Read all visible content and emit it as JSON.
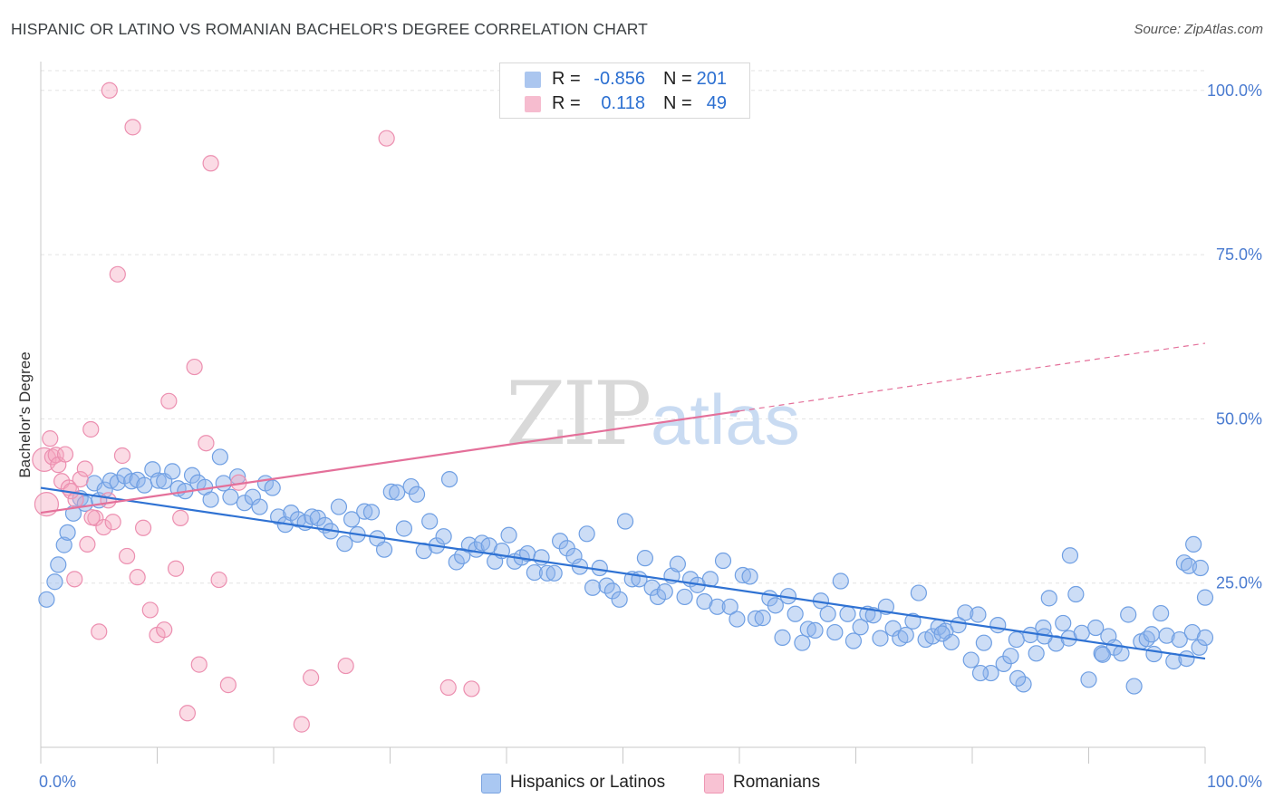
{
  "title": "HISPANIC OR LATINO VS ROMANIAN BACHELOR'S DEGREE CORRELATION CHART",
  "source": "Source: ZipAtlas.com",
  "watermark": {
    "zip": "ZIP",
    "atlas": "atlas"
  },
  "legend": {
    "rows": [
      {
        "r_label": "R =",
        "r_value": "-0.856",
        "n_label": "N =",
        "n_value": "201",
        "color": "#8fb4ea"
      },
      {
        "r_label": "R =",
        "r_value": "0.118",
        "n_label": "N =",
        "n_value": "49",
        "color": "#f4a6bf"
      }
    ]
  },
  "bottom_legend": [
    {
      "label": "Hispanics or Latinos",
      "color": "#aac8f2",
      "border": "#7aa3e0"
    },
    {
      "label": "Romanians",
      "color": "#f8c2d3",
      "border": "#ee96b3"
    }
  ],
  "chart_data": {
    "type": "scatter",
    "title": "HISPANIC OR LATINO VS ROMANIAN BACHELOR'S DEGREE CORRELATION CHART",
    "xlabel": "",
    "ylabel": "Bachelor's Degree",
    "xlim": [
      0,
      100
    ],
    "ylim": [
      0,
      103
    ],
    "x_tick_labels": [
      "0.0%",
      "100.0%"
    ],
    "y_tick_labels": [
      {
        "value": 100,
        "label": "100.0%"
      },
      {
        "value": 75,
        "label": "75.0%"
      },
      {
        "value": 50,
        "label": "50.0%"
      },
      {
        "value": 25,
        "label": "25.0%"
      }
    ],
    "grid": true,
    "legend_position": "top-center",
    "series": [
      {
        "name": "Hispanics or Latinos",
        "color": "#6f9fe3",
        "fill": "rgba(143,180,234,0.45)",
        "trend": {
          "x": [
            0,
            100
          ],
          "y": [
            39.5,
            13.5
          ],
          "dashed_from": null
        },
        "points": [
          [
            0.5,
            22.5
          ],
          [
            1.2,
            25.2
          ],
          [
            1.5,
            27.8
          ],
          [
            2.0,
            30.8
          ],
          [
            2.3,
            32.7
          ],
          [
            2.8,
            35.6
          ],
          [
            3.4,
            37.9
          ],
          [
            3.8,
            37.1
          ],
          [
            4.6,
            40.2
          ],
          [
            5.0,
            37.6
          ],
          [
            5.5,
            39.2
          ],
          [
            6.0,
            40.6
          ],
          [
            6.6,
            40.3
          ],
          [
            7.2,
            41.3
          ],
          [
            7.8,
            40.5
          ],
          [
            8.3,
            40.7
          ],
          [
            8.9,
            39.9
          ],
          [
            9.6,
            42.3
          ],
          [
            10.1,
            40.6
          ],
          [
            10.6,
            40.5
          ],
          [
            11.3,
            42.0
          ],
          [
            11.8,
            39.4
          ],
          [
            12.4,
            39.0
          ],
          [
            13.0,
            41.4
          ],
          [
            13.5,
            40.3
          ],
          [
            14.1,
            39.6
          ],
          [
            14.6,
            37.7
          ],
          [
            15.4,
            44.2
          ],
          [
            15.7,
            40.2
          ],
          [
            16.3,
            38.1
          ],
          [
            16.9,
            41.2
          ],
          [
            17.5,
            37.2
          ],
          [
            18.2,
            38.1
          ],
          [
            18.8,
            36.6
          ],
          [
            19.3,
            40.2
          ],
          [
            19.9,
            39.5
          ],
          [
            20.4,
            35.1
          ],
          [
            21.0,
            33.9
          ],
          [
            21.5,
            35.7
          ],
          [
            22.1,
            34.7
          ],
          [
            22.7,
            34.2
          ],
          [
            23.3,
            35.1
          ],
          [
            23.8,
            34.9
          ],
          [
            24.4,
            33.8
          ],
          [
            24.9,
            32.9
          ],
          [
            25.6,
            36.6
          ],
          [
            26.1,
            31.0
          ],
          [
            26.7,
            34.7
          ],
          [
            27.2,
            32.4
          ],
          [
            27.8,
            35.9
          ],
          [
            28.4,
            35.8
          ],
          [
            28.9,
            31.8
          ],
          [
            29.5,
            30.1
          ],
          [
            30.1,
            38.9
          ],
          [
            30.6,
            38.8
          ],
          [
            31.2,
            33.3
          ],
          [
            31.8,
            39.7
          ],
          [
            32.3,
            38.5
          ],
          [
            32.9,
            29.9
          ],
          [
            33.4,
            34.4
          ],
          [
            34.0,
            30.7
          ],
          [
            34.6,
            32.1
          ],
          [
            35.1,
            40.8
          ],
          [
            35.7,
            28.2
          ],
          [
            36.2,
            29.1
          ],
          [
            36.8,
            30.8
          ],
          [
            37.4,
            30.1
          ],
          [
            37.9,
            31.1
          ],
          [
            38.5,
            30.7
          ],
          [
            39.0,
            28.3
          ],
          [
            39.6,
            29.9
          ],
          [
            40.2,
            32.3
          ],
          [
            40.7,
            28.3
          ],
          [
            41.3,
            28.9
          ],
          [
            41.8,
            29.5
          ],
          [
            42.4,
            26.6
          ],
          [
            43.0,
            28.9
          ],
          [
            43.5,
            26.5
          ],
          [
            44.1,
            26.5
          ],
          [
            44.6,
            31.4
          ],
          [
            45.2,
            30.3
          ],
          [
            45.8,
            29.1
          ],
          [
            46.3,
            27.5
          ],
          [
            46.9,
            32.5
          ],
          [
            47.4,
            24.3
          ],
          [
            48.0,
            27.3
          ],
          [
            48.6,
            24.6
          ],
          [
            49.1,
            23.8
          ],
          [
            49.7,
            22.5
          ],
          [
            50.2,
            34.4
          ],
          [
            50.8,
            25.6
          ],
          [
            51.4,
            25.6
          ],
          [
            51.9,
            28.8
          ],
          [
            52.5,
            24.3
          ],
          [
            53.0,
            22.9
          ],
          [
            53.6,
            23.7
          ],
          [
            54.2,
            26.1
          ],
          [
            54.7,
            27.9
          ],
          [
            55.3,
            22.9
          ],
          [
            55.8,
            25.6
          ],
          [
            56.4,
            24.7
          ],
          [
            57.0,
            22.2
          ],
          [
            57.5,
            25.6
          ],
          [
            58.1,
            21.4
          ],
          [
            58.6,
            28.4
          ],
          [
            59.2,
            21.4
          ],
          [
            59.8,
            19.5
          ],
          [
            60.3,
            26.2
          ],
          [
            60.9,
            26.0
          ],
          [
            61.4,
            19.6
          ],
          [
            62.0,
            19.7
          ],
          [
            62.6,
            22.7
          ],
          [
            63.1,
            21.6
          ],
          [
            63.7,
            16.7
          ],
          [
            64.2,
            23.0
          ],
          [
            64.8,
            20.3
          ],
          [
            65.4,
            15.9
          ],
          [
            65.9,
            18.0
          ],
          [
            66.5,
            17.8
          ],
          [
            67.0,
            22.3
          ],
          [
            67.6,
            20.3
          ],
          [
            68.2,
            17.5
          ],
          [
            68.7,
            25.3
          ],
          [
            69.3,
            20.3
          ],
          [
            69.8,
            16.2
          ],
          [
            70.4,
            18.3
          ],
          [
            71.0,
            20.3
          ],
          [
            71.5,
            20.1
          ],
          [
            72.1,
            16.6
          ],
          [
            72.6,
            21.4
          ],
          [
            73.2,
            18.1
          ],
          [
            73.8,
            16.6
          ],
          [
            74.3,
            17.1
          ],
          [
            74.9,
            19.2
          ],
          [
            75.4,
            23.5
          ],
          [
            76.0,
            16.4
          ],
          [
            76.6,
            16.9
          ],
          [
            77.1,
            18.3
          ],
          [
            77.7,
            17.7
          ],
          [
            78.2,
            16.0
          ],
          [
            78.8,
            18.6
          ],
          [
            79.4,
            20.5
          ],
          [
            79.9,
            13.3
          ],
          [
            80.5,
            20.2
          ],
          [
            81.0,
            15.9
          ],
          [
            81.6,
            11.3
          ],
          [
            82.2,
            18.6
          ],
          [
            82.7,
            12.7
          ],
          [
            83.3,
            13.9
          ],
          [
            83.8,
            16.4
          ],
          [
            84.4,
            9.6
          ],
          [
            85.0,
            17.1
          ],
          [
            85.5,
            14.3
          ],
          [
            86.1,
            18.2
          ],
          [
            86.6,
            22.7
          ],
          [
            87.2,
            15.8
          ],
          [
            87.8,
            18.9
          ],
          [
            88.3,
            16.6
          ],
          [
            88.9,
            23.3
          ],
          [
            89.4,
            17.4
          ],
          [
            90.0,
            10.3
          ],
          [
            90.6,
            18.2
          ],
          [
            91.1,
            14.3
          ],
          [
            91.7,
            16.9
          ],
          [
            92.2,
            15.2
          ],
          [
            92.8,
            14.3
          ],
          [
            93.4,
            20.2
          ],
          [
            93.9,
            9.3
          ],
          [
            94.5,
            16.1
          ],
          [
            95.0,
            16.5
          ],
          [
            95.6,
            14.2
          ],
          [
            96.2,
            20.4
          ],
          [
            96.7,
            17.0
          ],
          [
            97.3,
            13.1
          ],
          [
            97.8,
            16.4
          ],
          [
            98.4,
            13.5
          ],
          [
            98.9,
            17.5
          ],
          [
            99.5,
            15.2
          ],
          [
            100.0,
            16.7
          ],
          [
            98.2,
            28.1
          ],
          [
            98.6,
            27.6
          ],
          [
            99.0,
            30.9
          ],
          [
            99.6,
            27.3
          ],
          [
            100.0,
            22.8
          ],
          [
            95.4,
            17.2
          ],
          [
            91.2,
            14.1
          ],
          [
            88.4,
            29.2
          ],
          [
            86.2,
            16.9
          ],
          [
            83.9,
            10.5
          ],
          [
            80.7,
            11.3
          ],
          [
            77.4,
            17.3
          ]
        ]
      },
      {
        "name": "Romanians",
        "color": "#ec8fb0",
        "fill": "rgba(244,166,191,0.40)",
        "trend": {
          "x": [
            0,
            100
          ],
          "y": [
            35.7,
            61.5
          ],
          "dashed_from": 60
        },
        "points": [
          [
            0.3,
            43.8
          ],
          [
            0.5,
            37.0
          ],
          [
            0.8,
            47.0
          ],
          [
            1.0,
            44.2
          ],
          [
            1.3,
            44.5
          ],
          [
            1.5,
            43.0
          ],
          [
            1.8,
            40.5
          ],
          [
            2.1,
            44.6
          ],
          [
            2.4,
            39.5
          ],
          [
            2.6,
            39.0
          ],
          [
            3.0,
            37.7
          ],
          [
            3.4,
            40.8
          ],
          [
            3.8,
            42.4
          ],
          [
            4.0,
            30.9
          ],
          [
            4.3,
            48.4
          ],
          [
            4.7,
            34.9
          ],
          [
            5.0,
            17.6
          ],
          [
            5.4,
            33.5
          ],
          [
            5.8,
            37.6
          ],
          [
            6.2,
            34.3
          ],
          [
            6.6,
            72.0
          ],
          [
            7.0,
            44.4
          ],
          [
            7.4,
            29.1
          ],
          [
            7.9,
            94.4
          ],
          [
            8.3,
            25.9
          ],
          [
            8.8,
            33.4
          ],
          [
            9.4,
            20.9
          ],
          [
            10.0,
            17.1
          ],
          [
            10.6,
            17.9
          ],
          [
            11.0,
            52.7
          ],
          [
            11.6,
            27.2
          ],
          [
            12.0,
            34.9
          ],
          [
            12.6,
            5.2
          ],
          [
            13.2,
            57.9
          ],
          [
            13.6,
            12.6
          ],
          [
            14.2,
            46.3
          ],
          [
            14.6,
            88.9
          ],
          [
            15.3,
            25.5
          ],
          [
            16.1,
            9.5
          ],
          [
            17.0,
            40.3
          ],
          [
            22.4,
            3.5
          ],
          [
            23.2,
            10.6
          ],
          [
            26.2,
            12.4
          ],
          [
            29.7,
            92.7
          ],
          [
            35.0,
            9.1
          ],
          [
            37.0,
            8.9
          ],
          [
            4.4,
            35.0
          ],
          [
            2.9,
            25.6
          ],
          [
            5.9,
            100.0
          ]
        ]
      }
    ]
  }
}
